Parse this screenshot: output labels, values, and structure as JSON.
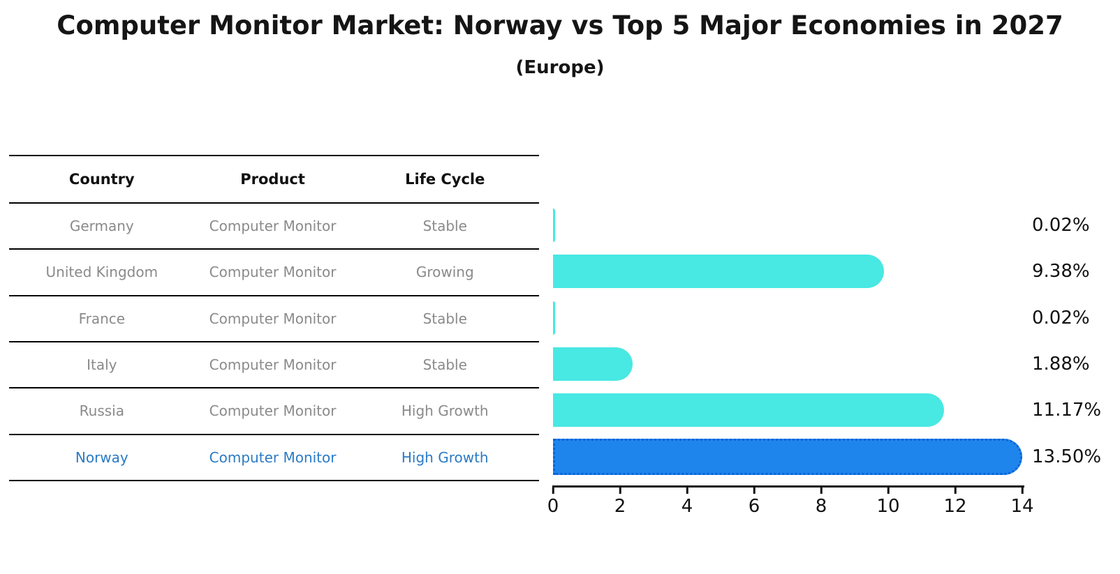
{
  "title": "Computer Monitor Market: Norway vs Top 5 Major Economies in 2027",
  "subtitle": "(Europe)",
  "table": {
    "headers": [
      "Country",
      "Product",
      "Life Cycle"
    ],
    "rows": [
      {
        "country": "Germany",
        "product": "Computer Monitor",
        "life_cycle": "Stable",
        "highlight": false
      },
      {
        "country": "United Kingdom",
        "product": "Computer Monitor",
        "life_cycle": "Growing",
        "highlight": false
      },
      {
        "country": "France",
        "product": "Computer Monitor",
        "life_cycle": "Stable",
        "highlight": false
      },
      {
        "country": "Italy",
        "product": "Computer Monitor",
        "life_cycle": "Stable",
        "highlight": false
      },
      {
        "country": "Russia",
        "product": "Computer Monitor",
        "life_cycle": "High Growth",
        "highlight": false
      },
      {
        "country": "Norway",
        "product": "Computer Monitor",
        "life_cycle": "High Growth",
        "highlight": true
      }
    ]
  },
  "chart_data": {
    "type": "bar",
    "orientation": "horizontal",
    "title": "Computer Monitor Market: Norway vs Top 5 Major Economies in 2027",
    "subtitle": "(Europe)",
    "categories": [
      "Germany",
      "United Kingdom",
      "France",
      "Italy",
      "Russia",
      "Norway"
    ],
    "values": [
      0.02,
      9.38,
      0.02,
      1.88,
      11.17,
      13.5
    ],
    "value_labels": [
      "0.02%",
      "9.38%",
      "0.02%",
      "1.88%",
      "11.17%",
      "13.50%"
    ],
    "xlabel": "",
    "ylabel": "",
    "xlim": [
      0,
      14
    ],
    "x_ticks": [
      0,
      2,
      4,
      6,
      8,
      10,
      12,
      14
    ],
    "grid": false,
    "legend": false,
    "highlight_index": 5,
    "colors": {
      "bar": "#48e8e3",
      "highlight_bar": "#1e85ec",
      "highlight_border": "#0b62d8",
      "highlight_text": "#2b7bc4",
      "row_text": "#8a8a8a",
      "header_text": "#111111",
      "axis": "#111111",
      "value_label": "#111111"
    }
  }
}
